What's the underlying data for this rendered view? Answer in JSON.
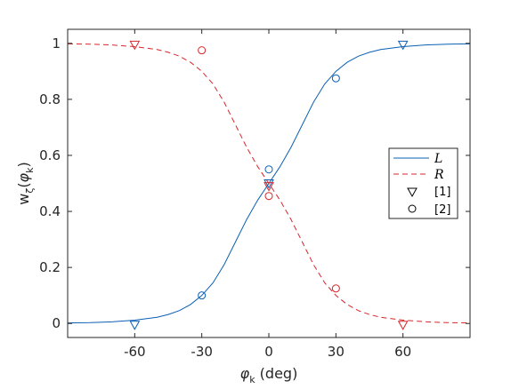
{
  "chart_data": {
    "type": "line",
    "xlabel": {
      "symbol": "φ",
      "sub": "k",
      "unit": " (deg)"
    },
    "ylabel": {
      "main": "w",
      "sub1": "ζ",
      "paren_open": "(",
      "phi": "φ",
      "sub2": "k",
      "paren_close": ")"
    },
    "xlim": [
      -90,
      90
    ],
    "ylim": [
      -0.05,
      1.05
    ],
    "x_ticks": [
      -60,
      -30,
      0,
      30,
      60
    ],
    "x_tick_labels": [
      "-60",
      "-30",
      "0",
      "30",
      "60"
    ],
    "y_ticks": [
      0,
      0.2,
      0.4,
      0.6,
      0.8,
      1
    ],
    "y_tick_labels": [
      "0",
      "0.2",
      "0.4",
      "0.6",
      "0.8",
      "1"
    ],
    "grid": false,
    "legend_position": "right",
    "series": [
      {
        "name": "L",
        "style": "solid",
        "color": "#0a5fb4",
        "x": [
          -90,
          -80,
          -70,
          -60,
          -50,
          -45,
          -40,
          -35,
          -30,
          -25,
          -20,
          -15,
          -10,
          -5,
          0,
          5,
          10,
          15,
          20,
          25,
          30,
          35,
          40,
          45,
          50,
          60,
          70,
          80,
          90
        ],
        "y": [
          0.002,
          0.003,
          0.006,
          0.012,
          0.022,
          0.032,
          0.046,
          0.068,
          0.1,
          0.145,
          0.21,
          0.29,
          0.37,
          0.44,
          0.5,
          0.56,
          0.63,
          0.71,
          0.79,
          0.855,
          0.9,
          0.932,
          0.954,
          0.968,
          0.978,
          0.988,
          0.994,
          0.997,
          0.998
        ]
      },
      {
        "name": "R",
        "style": "dashed",
        "color": "#d6262b",
        "x": [
          -90,
          -80,
          -70,
          -60,
          -50,
          -45,
          -40,
          -35,
          -30,
          -25,
          -20,
          -15,
          -10,
          -5,
          0,
          5,
          10,
          15,
          20,
          25,
          30,
          35,
          40,
          45,
          50,
          60,
          70,
          80,
          90
        ],
        "y": [
          0.998,
          0.997,
          0.994,
          0.988,
          0.978,
          0.968,
          0.954,
          0.932,
          0.9,
          0.855,
          0.79,
          0.71,
          0.63,
          0.56,
          0.5,
          0.44,
          0.37,
          0.29,
          0.21,
          0.145,
          0.1,
          0.068,
          0.046,
          0.032,
          0.022,
          0.012,
          0.006,
          0.003,
          0.002
        ]
      }
    ],
    "markers": [
      {
        "name": "[1]",
        "shape": "triangle-down",
        "points": [
          {
            "x": -60,
            "y": 0.995,
            "color": "#d6262b"
          },
          {
            "x": -60,
            "y": -0.005,
            "color": "#0a5fb4"
          },
          {
            "x": 0,
            "y": 0.5,
            "color": "#0a5fb4"
          },
          {
            "x": 0,
            "y": 0.49,
            "color": "#d6262b"
          },
          {
            "x": 60,
            "y": 0.995,
            "color": "#0a5fb4"
          },
          {
            "x": 60,
            "y": -0.005,
            "color": "#d6262b"
          }
        ]
      },
      {
        "name": "[2]",
        "shape": "circle",
        "points": [
          {
            "x": -30,
            "y": 0.975,
            "color": "#d6262b"
          },
          {
            "x": -30,
            "y": 0.1,
            "color": "#0a5fb4"
          },
          {
            "x": 0,
            "y": 0.55,
            "color": "#0a5fb4"
          },
          {
            "x": 0,
            "y": 0.455,
            "color": "#d6262b"
          },
          {
            "x": 30,
            "y": 0.875,
            "color": "#0a5fb4"
          },
          {
            "x": 30,
            "y": 0.125,
            "color": "#d6262b"
          }
        ]
      }
    ]
  }
}
